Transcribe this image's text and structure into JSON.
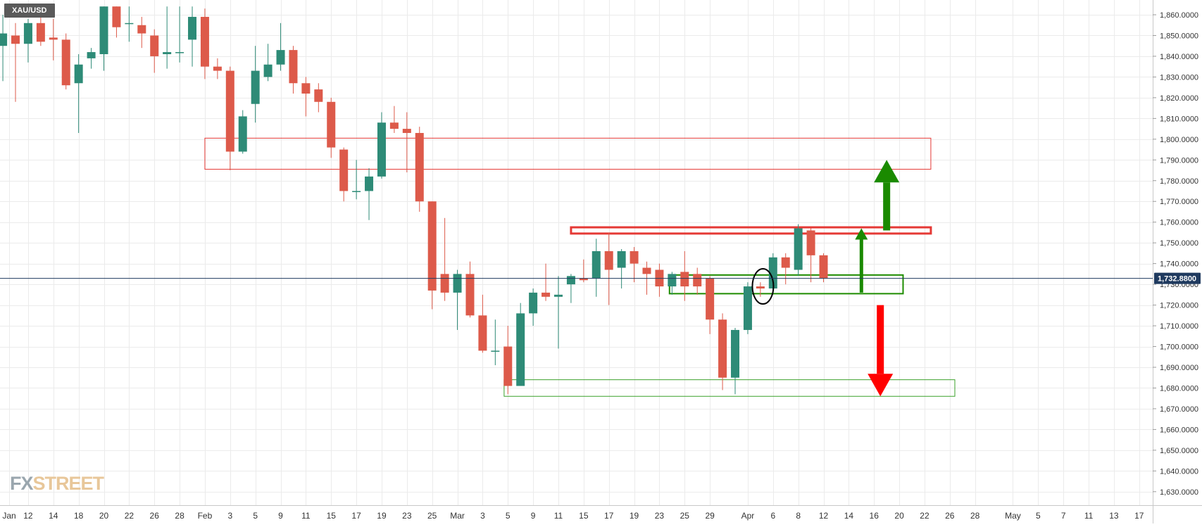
{
  "symbol": "XAU/USD",
  "logo": {
    "part1": "FX",
    "part2": "STREET",
    "color1": "#9aa6ae",
    "color2": "#e8c79a"
  },
  "colors": {
    "up": "#2e8b77",
    "down": "#dd5a4a",
    "grid": "#ebebeb",
    "price_line": "#1f3a5f",
    "price_label_bg": "#1f3a5f"
  },
  "chart_data": {
    "type": "candlestick",
    "ylim": [
      1625,
      1864
    ],
    "yticks": [
      1630,
      1640,
      1650,
      1660,
      1670,
      1680,
      1690,
      1700,
      1710,
      1720,
      1730,
      1740,
      1750,
      1760,
      1770,
      1780,
      1790,
      1800,
      1810,
      1820,
      1830,
      1840,
      1850,
      1860
    ],
    "ytick_labels": [
      "1,630.0000",
      "1,640.0000",
      "1,650.0000",
      "1,660.0000",
      "1,670.0000",
      "1,680.0000",
      "1,690.0000",
      "1,700.0000",
      "1,710.0000",
      "1,720.0000",
      "1,730.0000",
      "1,740.0000",
      "1,750.0000",
      "1,760.0000",
      "1,770.0000",
      "1,780.0000",
      "1,790.0000",
      "1,800.0000",
      "1,810.0000",
      "1,820.0000",
      "1,830.0000",
      "1,840.0000",
      "1,850.0000",
      "1,860.0000"
    ],
    "x_ticks": [
      {
        "label": "Jan",
        "t": -0.5
      },
      {
        "label": "12",
        "t": 1
      },
      {
        "label": "14",
        "t": 3
      },
      {
        "label": "18",
        "t": 5
      },
      {
        "label": "20",
        "t": 7
      },
      {
        "label": "22",
        "t": 9
      },
      {
        "label": "26",
        "t": 11
      },
      {
        "label": "28",
        "t": 13
      },
      {
        "label": "Feb",
        "t": 15
      },
      {
        "label": "3",
        "t": 17
      },
      {
        "label": "5",
        "t": 19
      },
      {
        "label": "9",
        "t": 21
      },
      {
        "label": "11",
        "t": 23
      },
      {
        "label": "15",
        "t": 25
      },
      {
        "label": "17",
        "t": 27
      },
      {
        "label": "19",
        "t": 29
      },
      {
        "label": "23",
        "t": 31
      },
      {
        "label": "25",
        "t": 33
      },
      {
        "label": "Mar",
        "t": 35
      },
      {
        "label": "3",
        "t": 37
      },
      {
        "label": "5",
        "t": 39
      },
      {
        "label": "9",
        "t": 41
      },
      {
        "label": "11",
        "t": 43
      },
      {
        "label": "15",
        "t": 45
      },
      {
        "label": "17",
        "t": 47
      },
      {
        "label": "19",
        "t": 49
      },
      {
        "label": "23",
        "t": 51
      },
      {
        "label": "25",
        "t": 53
      },
      {
        "label": "29",
        "t": 55
      },
      {
        "label": "Apr",
        "t": 58
      },
      {
        "label": "6",
        "t": 60
      },
      {
        "label": "8",
        "t": 62
      },
      {
        "label": "12",
        "t": 64
      },
      {
        "label": "14",
        "t": 66
      },
      {
        "label": "16",
        "t": 68
      },
      {
        "label": "20",
        "t": 70
      },
      {
        "label": "22",
        "t": 72
      },
      {
        "label": "26",
        "t": 74
      },
      {
        "label": "28",
        "t": 76
      },
      {
        "label": "May",
        "t": 79
      },
      {
        "label": "5",
        "t": 81
      },
      {
        "label": "7",
        "t": 83
      },
      {
        "label": "11",
        "t": 85
      },
      {
        "label": "13",
        "t": 87
      },
      {
        "label": "17",
        "t": 89
      }
    ],
    "candles": [
      {
        "o": 1845,
        "h": 1860,
        "l": 1828,
        "c": 1851
      },
      {
        "o": 1850,
        "h": 1856,
        "l": 1818,
        "c": 1846
      },
      {
        "o": 1846,
        "h": 1858,
        "l": 1837,
        "c": 1856
      },
      {
        "o": 1856,
        "h": 1860,
        "l": 1845,
        "c": 1847
      },
      {
        "o": 1849,
        "h": 1858,
        "l": 1838,
        "c": 1848
      },
      {
        "o": 1848,
        "h": 1851,
        "l": 1824,
        "c": 1826
      },
      {
        "o": 1827,
        "h": 1841,
        "l": 1803,
        "c": 1836
      },
      {
        "o": 1839,
        "h": 1844,
        "l": 1834,
        "c": 1842
      },
      {
        "o": 1841,
        "h": 1864,
        "l": 1833,
        "c": 1864
      },
      {
        "o": 1864,
        "h": 1864,
        "l": 1849,
        "c": 1854
      },
      {
        "o": 1856,
        "h": 1864,
        "l": 1847,
        "c": 1856
      },
      {
        "o": 1855,
        "h": 1859,
        "l": 1844,
        "c": 1851
      },
      {
        "o": 1850,
        "h": 1853,
        "l": 1832,
        "c": 1840
      },
      {
        "o": 1841,
        "h": 1864,
        "l": 1834,
        "c": 1842
      },
      {
        "o": 1842,
        "h": 1864,
        "l": 1837,
        "c": 1842
      },
      {
        "o": 1848,
        "h": 1864,
        "l": 1835,
        "c": 1859
      },
      {
        "o": 1859,
        "h": 1863,
        "l": 1829,
        "c": 1835
      },
      {
        "o": 1835,
        "h": 1839,
        "l": 1829,
        "c": 1833
      },
      {
        "o": 1833,
        "h": 1835,
        "l": 1785,
        "c": 1794
      },
      {
        "o": 1794,
        "h": 1814,
        "l": 1793,
        "c": 1811
      },
      {
        "o": 1817,
        "h": 1845,
        "l": 1808,
        "c": 1833
      },
      {
        "o": 1830,
        "h": 1846,
        "l": 1828,
        "c": 1836
      },
      {
        "o": 1836,
        "h": 1856,
        "l": 1833,
        "c": 1843
      },
      {
        "o": 1843,
        "h": 1845,
        "l": 1822,
        "c": 1827
      },
      {
        "o": 1827,
        "h": 1830,
        "l": 1811,
        "c": 1822
      },
      {
        "o": 1824,
        "h": 1827,
        "l": 1813,
        "c": 1818
      },
      {
        "o": 1818,
        "h": 1820,
        "l": 1791,
        "c": 1796
      },
      {
        "o": 1795,
        "h": 1796,
        "l": 1770,
        "c": 1775
      },
      {
        "o": 1775,
        "h": 1790,
        "l": 1771,
        "c": 1775
      },
      {
        "o": 1775,
        "h": 1786,
        "l": 1761,
        "c": 1782
      },
      {
        "o": 1782,
        "h": 1813,
        "l": 1781,
        "c": 1808
      },
      {
        "o": 1808,
        "h": 1816,
        "l": 1803,
        "c": 1805
      },
      {
        "o": 1805,
        "h": 1813,
        "l": 1784,
        "c": 1803
      },
      {
        "o": 1803,
        "h": 1806,
        "l": 1765,
        "c": 1770
      },
      {
        "o": 1770,
        "h": 1770,
        "l": 1718,
        "c": 1727
      },
      {
        "o": 1735,
        "h": 1762,
        "l": 1722,
        "c": 1726
      },
      {
        "o": 1726,
        "h": 1737,
        "l": 1708,
        "c": 1735
      },
      {
        "o": 1735,
        "h": 1741,
        "l": 1714,
        "c": 1715
      },
      {
        "o": 1715,
        "h": 1725,
        "l": 1697,
        "c": 1698
      },
      {
        "o": 1698,
        "h": 1713,
        "l": 1691,
        "c": 1698
      },
      {
        "o": 1700,
        "h": 1710,
        "l": 1677,
        "c": 1681
      },
      {
        "o": 1681,
        "h": 1721,
        "l": 1681,
        "c": 1716
      },
      {
        "o": 1716,
        "h": 1728,
        "l": 1710,
        "c": 1726
      },
      {
        "o": 1726,
        "h": 1740,
        "l": 1722,
        "c": 1724
      },
      {
        "o": 1724,
        "h": 1734,
        "l": 1699,
        "c": 1725
      },
      {
        "o": 1730,
        "h": 1735,
        "l": 1721,
        "c": 1734
      },
      {
        "o": 1733,
        "h": 1742,
        "l": 1731,
        "c": 1732
      },
      {
        "o": 1733,
        "h": 1752,
        "l": 1724,
        "c": 1746
      },
      {
        "o": 1746,
        "h": 1755,
        "l": 1720,
        "c": 1737
      },
      {
        "o": 1738,
        "h": 1747,
        "l": 1728,
        "c": 1746
      },
      {
        "o": 1746,
        "h": 1748,
        "l": 1731,
        "c": 1740
      },
      {
        "o": 1738,
        "h": 1741,
        "l": 1725,
        "c": 1735
      },
      {
        "o": 1737,
        "h": 1740,
        "l": 1724,
        "c": 1729
      },
      {
        "o": 1729,
        "h": 1736,
        "l": 1725,
        "c": 1735
      },
      {
        "o": 1736,
        "h": 1746,
        "l": 1722,
        "c": 1729
      },
      {
        "o": 1735,
        "h": 1738,
        "l": 1725,
        "c": 1729
      },
      {
        "o": 1733,
        "h": 1734,
        "l": 1706,
        "c": 1713
      },
      {
        "o": 1713,
        "h": 1716,
        "l": 1679,
        "c": 1685
      },
      {
        "o": 1685,
        "h": 1709,
        "l": 1677,
        "c": 1708
      },
      {
        "o": 1708,
        "h": 1731,
        "l": 1706,
        "c": 1729
      },
      {
        "o": 1729,
        "h": 1731,
        "l": 1724,
        "c": 1728
      },
      {
        "o": 1728,
        "h": 1745,
        "l": 1726,
        "c": 1743
      },
      {
        "o": 1743,
        "h": 1745,
        "l": 1730,
        "c": 1738
      },
      {
        "o": 1737,
        "h": 1759,
        "l": 1734,
        "c": 1757
      },
      {
        "o": 1756,
        "h": 1757,
        "l": 1731,
        "c": 1744
      },
      {
        "o": 1744,
        "h": 1745,
        "l": 1731,
        "c": 1733
      }
    ],
    "candle_t": [
      -1,
      0,
      1,
      2,
      3,
      4,
      5,
      6,
      7,
      8,
      9,
      10,
      11,
      12,
      13,
      14,
      15,
      16,
      17,
      18,
      19,
      20,
      21,
      22,
      23,
      24,
      25,
      26,
      27,
      28,
      29,
      30,
      31,
      32,
      33,
      34,
      35,
      36,
      37,
      38,
      39,
      40,
      41,
      42,
      43,
      44,
      45,
      46,
      47,
      48,
      49,
      50,
      51,
      52,
      53,
      54,
      55,
      56,
      57,
      58,
      59,
      60,
      61,
      62,
      63,
      64
    ],
    "current_price": 1732.88,
    "current_price_label": "1,732.8800",
    "annotations": {
      "zones": [
        {
          "t0": 15,
          "t1": 72.5,
          "p0": 1785.5,
          "p1": 1800.5,
          "color": "#e53935",
          "width": 1
        },
        {
          "t0": 44,
          "t1": 72.5,
          "p0": 1754.5,
          "p1": 1757.5,
          "color": "#e53935",
          "width": 3
        },
        {
          "t0": 51.8,
          "t1": 70.3,
          "p0": 1725.5,
          "p1": 1734.5,
          "color": "#1e8c00",
          "width": 2
        },
        {
          "t0": 38.7,
          "t1": 74.4,
          "p0": 1676,
          "p1": 1684,
          "color": "#3aa02a",
          "width": 1
        }
      ],
      "arrows": [
        {
          "t": 69,
          "from": 1756,
          "to": 1790,
          "color": "#1a8a00",
          "width": 10
        },
        {
          "t": 67,
          "from": 1726,
          "to": 1757,
          "color": "#1a8a00",
          "width": 5
        },
        {
          "t": 68.5,
          "from": 1720,
          "to": 1676,
          "color": "#ff0000",
          "width": 10
        }
      ],
      "circle": {
        "t": 59.2,
        "p": 1729,
        "rx": 15,
        "ry": 25
      }
    }
  }
}
